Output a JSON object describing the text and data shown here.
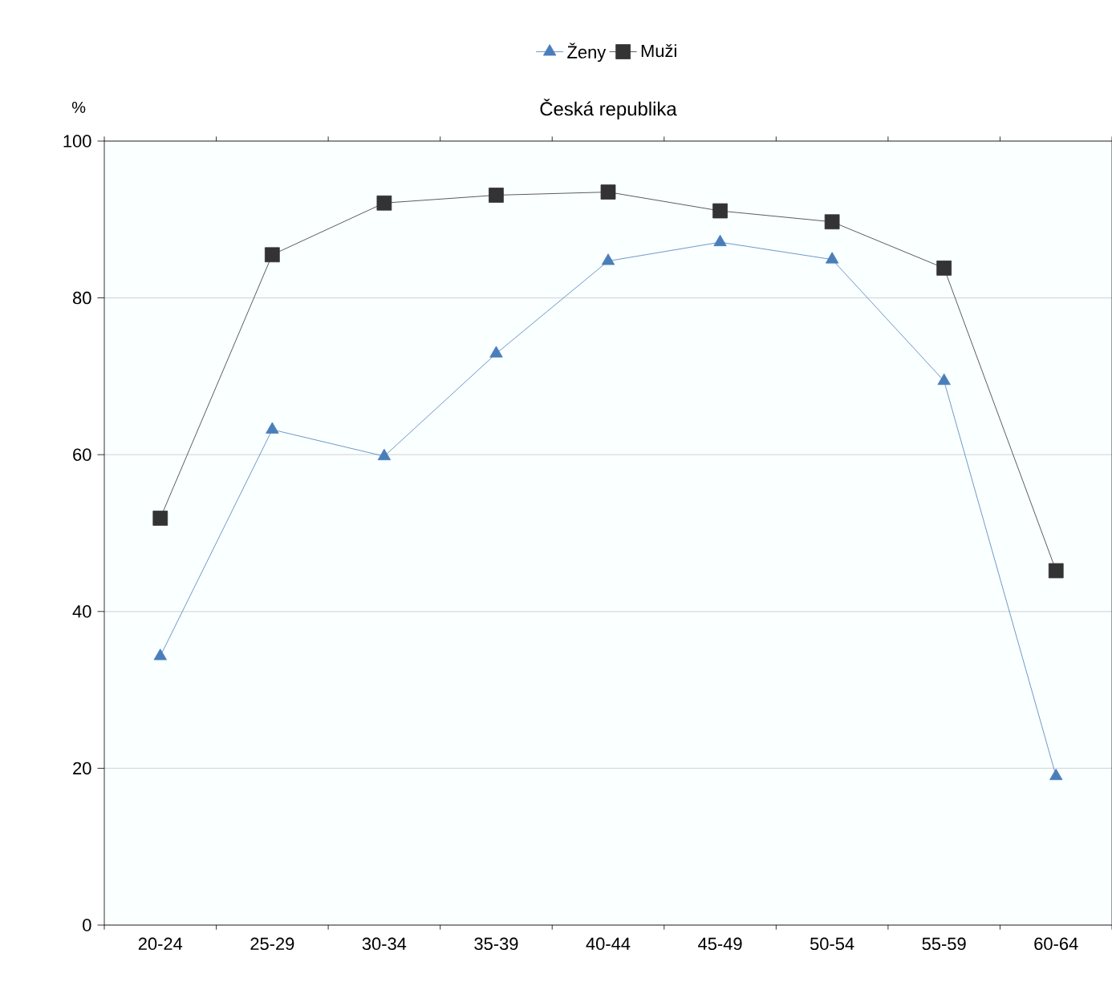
{
  "chart_data": {
    "type": "line",
    "title": "Česká republika",
    "ylabel": "%",
    "categories": [
      "20-24",
      "25-29",
      "30-34",
      "35-39",
      "40-44",
      "45-49",
      "50-54",
      "55-59",
      "60-64"
    ],
    "series": [
      {
        "name": "Ženy",
        "color": "#4a7ebb",
        "marker": "triangle",
        "values": [
          34.3,
          63.2,
          59.8,
          72.9,
          84.7,
          87.1,
          84.9,
          69.4,
          19.0
        ]
      },
      {
        "name": "Muži",
        "color": "#333333",
        "marker": "square",
        "values": [
          51.9,
          85.5,
          92.1,
          93.1,
          93.5,
          91.1,
          89.7,
          83.8,
          45.2
        ]
      }
    ],
    "ylim": [
      0,
      100
    ],
    "yticks": [
      0,
      20,
      40,
      60,
      80,
      100
    ],
    "grid": "y",
    "legend": "top",
    "line_style": "solid"
  }
}
